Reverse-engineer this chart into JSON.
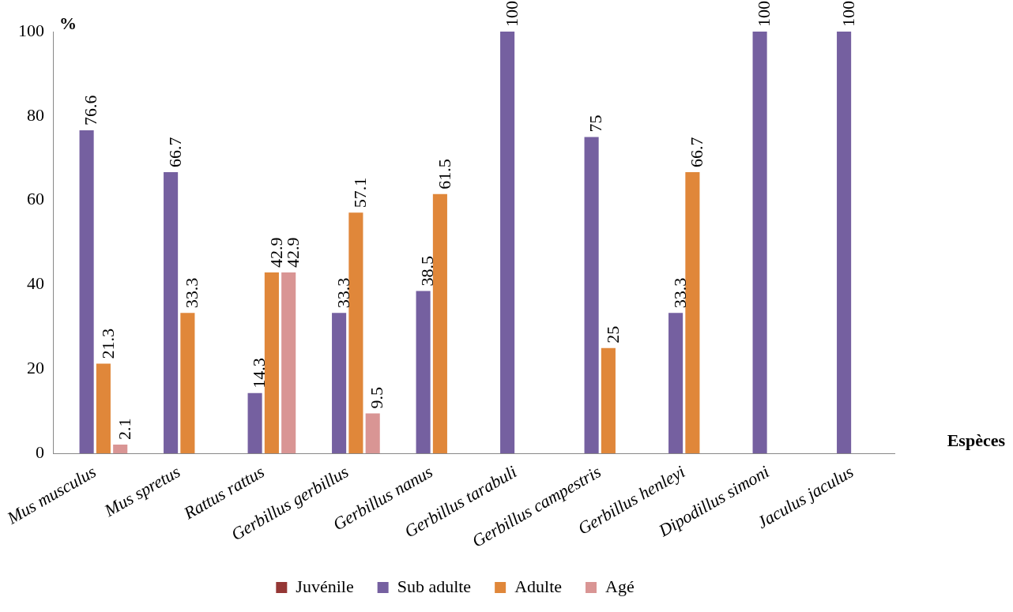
{
  "chart_data": {
    "type": "bar",
    "ylabel": "%",
    "xlabel": "Espèces",
    "categories": [
      "Mus musculus",
      "Mus spretus",
      "Rattus rattus",
      "Gerbillus gerbillus",
      "Gerbillus nanus",
      "Gerbillus tarabuli",
      "Gerbillus campestris",
      "Gerbillus henleyi",
      "Dipodillus simoni",
      "Jaculus jaculus"
    ],
    "series": [
      {
        "name": "Juvénile",
        "color": "#953735",
        "values": [
          0,
          0,
          0,
          0,
          0,
          0,
          0,
          0,
          0,
          0
        ],
        "value_labels": [
          null,
          null,
          null,
          null,
          null,
          null,
          null,
          null,
          null,
          null
        ]
      },
      {
        "name": "Sub adulte",
        "color": "#7560a0",
        "values": [
          76.6,
          66.7,
          14.3,
          33.3,
          38.5,
          100,
          75,
          33.3,
          100,
          100
        ],
        "value_labels": [
          "76.6",
          "66.7",
          "14.3",
          "33.3",
          "38.5",
          "100",
          "75",
          "33.3",
          "100",
          "100"
        ]
      },
      {
        "name": "Adulte",
        "color": "#e0873a",
        "values": [
          21.3,
          33.3,
          42.9,
          57.1,
          61.5,
          0,
          25,
          66.7,
          0,
          0
        ],
        "value_labels": [
          "21.3",
          "33.3",
          "42.9",
          "57.1",
          "61.5",
          null,
          "25",
          "66.7",
          null,
          null
        ]
      },
      {
        "name": "Agé",
        "color": "#d99594",
        "values": [
          2.1,
          0,
          42.9,
          9.5,
          0,
          0,
          0,
          0,
          0,
          0
        ],
        "value_labels": [
          "2.1",
          null,
          "42.9",
          "9.5",
          null,
          null,
          null,
          null,
          null,
          null
        ]
      }
    ],
    "ylim": [
      0,
      100
    ],
    "yticks": [
      0,
      20,
      40,
      60,
      80,
      100
    ],
    "grid": false,
    "legend": "bottom"
  }
}
